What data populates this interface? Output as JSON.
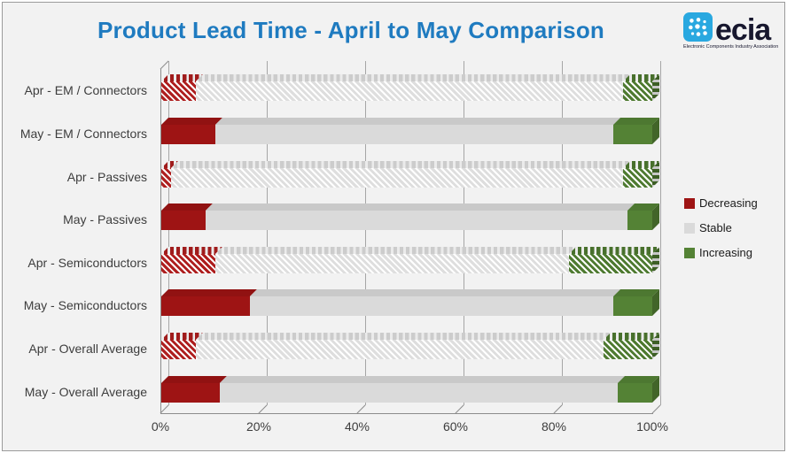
{
  "title": "Product Lead Time - April to May Comparison",
  "logo": {
    "name": "ecia",
    "tagline": "Electronic Components Industry Association",
    "icon": "ecia-dots-icon",
    "icon_color": "#29a8e0",
    "text_color": "#17172e"
  },
  "legend": {
    "position": "right",
    "items": [
      {
        "label": "Decreasing",
        "color": "#9e1414"
      },
      {
        "label": "Stable",
        "color": "#dadada"
      },
      {
        "label": "Increasing",
        "color": "#548235"
      }
    ]
  },
  "chart_data": {
    "type": "bar",
    "orientation": "horizontal",
    "stacked": true,
    "style": "3d, April rows drawn with diagonal hatch fill, May rows solid",
    "title": "Product Lead Time - April to May Comparison",
    "categories": [
      "Apr - EM / Connectors",
      "May - EM / Connectors",
      "Apr - Passives",
      "May - Passives",
      "Apr - Semiconductors",
      "May - Semiconductors",
      "Apr - Overall Average",
      "May - Overall Average"
    ],
    "series": [
      {
        "name": "Decreasing",
        "color": "#9e1414",
        "hatch_color": "#ae1e1e",
        "values": [
          7,
          11,
          2,
          9,
          11,
          18,
          7,
          12
        ]
      },
      {
        "name": "Stable",
        "color": "#dadada",
        "hatch_color": "#dedede",
        "values": [
          87,
          81,
          92,
          86,
          72,
          74,
          83,
          81
        ]
      },
      {
        "name": "Increasing",
        "color": "#548235",
        "hatch_color": "#4e7a30",
        "values": [
          6,
          8,
          6,
          5,
          17,
          8,
          10,
          7
        ]
      }
    ],
    "hatched_rows": [
      0,
      2,
      4,
      6
    ],
    "x_ticks": [
      "0%",
      "20%",
      "40%",
      "60%",
      "80%",
      "100%"
    ],
    "xlim": [
      0,
      100
    ],
    "grid": true,
    "unit": "%"
  }
}
